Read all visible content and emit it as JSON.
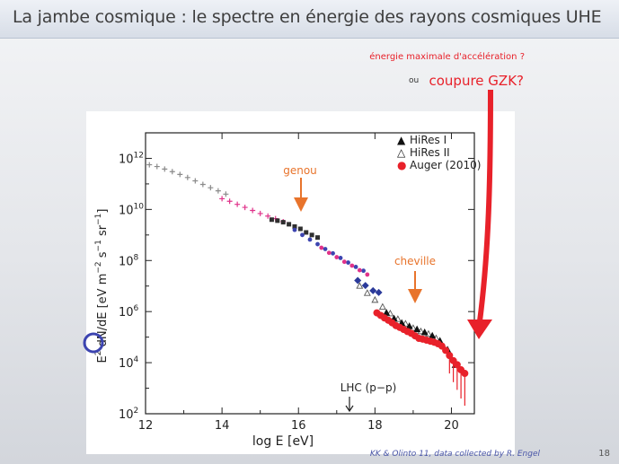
{
  "slide": {
    "title": "La jambe cosmique : le spectre en énergie des rayons cosmiques UHE",
    "credit": "KK & Olinto 11, data collected by R. Engel",
    "page_number": "18"
  },
  "annotations": {
    "max_energy": "énergie maximale d'accélération ?",
    "or": "ou",
    "gzk": "coupure GZK?",
    "knee": "genou",
    "ankle": "cheville",
    "lhc": "LHC (p−p)"
  },
  "colors": {
    "orange": "#e8742c",
    "red": "#e8212a",
    "magenta": "#e0328a",
    "blue": "#3c44b0",
    "navy": "#2b3a9a",
    "gray": "#8a8a8a",
    "frame": "#ffffff"
  },
  "chart_data": {
    "type": "scatter",
    "xlabel": "log E [eV]",
    "ylabel_parts": [
      "E",
      "2",
      " dN/dE [eV m",
      "−2",
      " s",
      "−1",
      " sr",
      "−1",
      "]"
    ],
    "xlim": [
      12,
      20.6
    ],
    "ylim": [
      2,
      13
    ],
    "log_y": true,
    "x_ticks": [
      12,
      14,
      16,
      18,
      20
    ],
    "y_ticks": [
      {
        "v": 2,
        "base": "10",
        "exp": "2"
      },
      {
        "v": 4,
        "base": "10",
        "exp": "4"
      },
      {
        "v": 6,
        "base": "10",
        "exp": "6"
      },
      {
        "v": 8,
        "base": "10",
        "exp": "8"
      },
      {
        "v": 10,
        "base": "10",
        "exp": "10"
      },
      {
        "v": 12,
        "base": "10",
        "exp": "12"
      }
    ],
    "legend_position": "top-right",
    "legend": [
      {
        "symbol": "▲",
        "label": "HiRes I"
      },
      {
        "symbol": "△",
        "label": "HiRes II"
      },
      {
        "symbol": "●",
        "label": "Auger (2010)"
      }
    ],
    "series": [
      {
        "name": "",
        "color": "#8a8a8a",
        "marker": "cross",
        "x": [
          12.1,
          12.3,
          12.5,
          12.7,
          12.9,
          13.1,
          13.3,
          13.5,
          13.7,
          13.9,
          14.1
        ],
        "y": [
          11.75,
          11.68,
          11.58,
          11.48,
          11.37,
          11.25,
          11.12,
          10.98,
          10.85,
          10.73,
          10.6
        ]
      },
      {
        "name": "",
        "color": "#e0328a",
        "marker": "cross",
        "x": [
          14.0,
          14.2,
          14.4,
          14.6,
          14.8,
          15.0,
          15.2,
          15.4,
          15.6
        ],
        "y": [
          10.42,
          10.32,
          10.2,
          10.08,
          9.96,
          9.84,
          9.74,
          9.64,
          9.52
        ]
      },
      {
        "name": "",
        "color": "#2f2f2f",
        "marker": "square",
        "x": [
          15.3,
          15.45,
          15.6,
          15.75,
          15.9,
          16.05,
          16.2,
          16.35,
          16.5
        ],
        "y": [
          9.6,
          9.56,
          9.5,
          9.42,
          9.33,
          9.24,
          9.1,
          9.0,
          8.9
        ]
      },
      {
        "name": "",
        "color": "#3c44b0",
        "marker": "circle",
        "x": [
          15.9,
          16.1,
          16.3,
          16.5,
          16.7,
          16.9,
          17.1,
          17.3,
          17.5,
          17.7
        ],
        "y": [
          9.2,
          9.0,
          8.82,
          8.64,
          8.45,
          8.28,
          8.1,
          7.92,
          7.75,
          7.6
        ]
      },
      {
        "name": "",
        "color": "#e0328a",
        "marker": "circle",
        "x": [
          16.6,
          16.8,
          17.0,
          17.2,
          17.4,
          17.6,
          17.8
        ],
        "y": [
          8.5,
          8.3,
          8.13,
          7.95,
          7.8,
          7.62,
          7.45
        ]
      },
      {
        "name": "",
        "color": "#2b3a9a",
        "marker": "diamond",
        "x": [
          17.55,
          17.75,
          17.95,
          18.1
        ],
        "y": [
          7.22,
          7.02,
          6.82,
          6.75
        ]
      },
      {
        "name": "",
        "color": "#555555",
        "marker": "triangle-open",
        "x": [
          17.6,
          17.8,
          18.0,
          18.2,
          18.4,
          18.6,
          18.8,
          19.0,
          19.2,
          19.4,
          19.6
        ],
        "y": [
          7.0,
          6.72,
          6.45,
          6.18,
          5.92,
          5.7,
          5.52,
          5.35,
          5.22,
          5.12,
          4.95
        ]
      },
      {
        "name": "HiRes I",
        "color": "#111111",
        "marker": "triangle",
        "x": [
          18.3,
          18.5,
          18.7,
          18.9,
          19.1,
          19.3,
          19.5,
          19.7,
          19.9,
          20.1
        ],
        "y": [
          5.95,
          5.72,
          5.55,
          5.42,
          5.3,
          5.18,
          5.05,
          4.85,
          4.5,
          3.9
        ]
      },
      {
        "name": "Auger (2010)",
        "color": "#e8212a",
        "marker": "circle",
        "x": [
          18.05,
          18.15,
          18.25,
          18.35,
          18.45,
          18.55,
          18.65,
          18.75,
          18.85,
          18.95,
          19.05,
          19.15,
          19.25,
          19.35,
          19.45,
          19.55,
          19.65,
          19.75,
          19.85,
          19.95,
          20.05,
          20.15,
          20.25,
          20.35
        ],
        "y": [
          5.95,
          5.85,
          5.75,
          5.66,
          5.56,
          5.45,
          5.38,
          5.3,
          5.22,
          5.15,
          5.05,
          4.95,
          4.92,
          4.88,
          4.84,
          4.8,
          4.74,
          4.65,
          4.48,
          4.28,
          4.08,
          3.92,
          3.72,
          3.58
        ]
      }
    ]
  }
}
